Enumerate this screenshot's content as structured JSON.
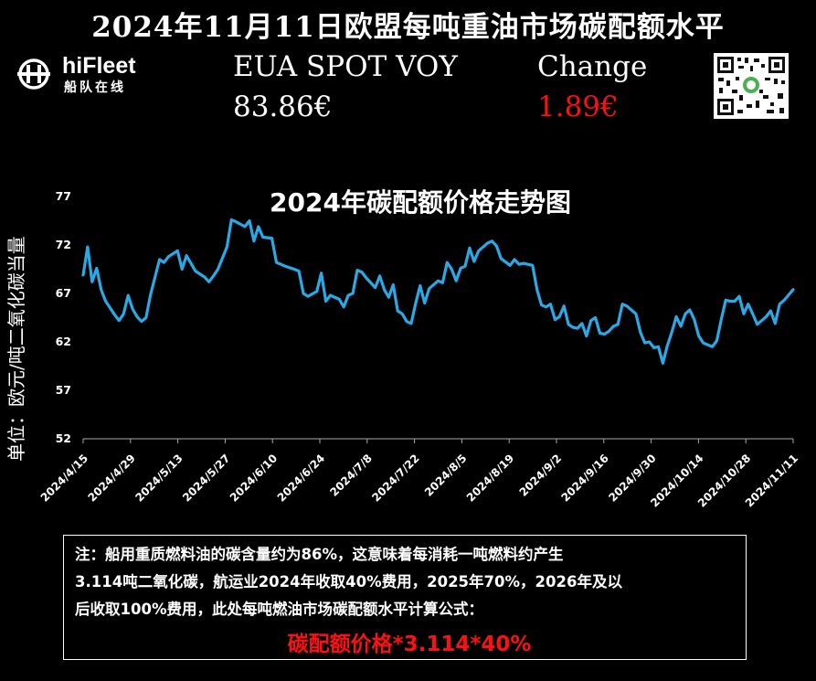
{
  "page_title": "2024年11月11日欧盟每吨重油市场碳配额水平",
  "logo": {
    "name": "hiFleet",
    "sub": "船队在线"
  },
  "kpi": {
    "spot_label": "EUA SPOT VOY",
    "spot_value": "83.86€",
    "change_label": "Change",
    "change_value": "1.89€",
    "change_color": "#ff1010"
  },
  "qr_code": {
    "icon": "qr-code-icon"
  },
  "note": {
    "lines": [
      "注：船用重质燃料油的碳含量约为86%，这意味着每消耗一吨燃料约产生",
      "3.114吨二氧化碳，航运业2024年收取40%费用，2025年70%，2026年及以",
      "后收取100%费用，此处每吨燃油市场碳配额水平计算公式："
    ],
    "formula": "碳配额价格*3.114*40%"
  },
  "chart_data": {
    "type": "line",
    "title": "2024年碳配额价格走势图",
    "ylabel": "单位：欧元/吨二氧化碳当量",
    "xlabel": "",
    "ylim": [
      52,
      77
    ],
    "yticks": [
      52,
      57,
      62,
      67,
      72,
      77
    ],
    "xticks": [
      "2024/4/15",
      "2024/4/29",
      "2024/5/13",
      "2024/5/27",
      "2024/6/10",
      "2024/6/24",
      "2024/7/8",
      "2024/7/22",
      "2024/8/5",
      "2024/8/19",
      "2024/9/2",
      "2024/9/16",
      "2024/9/30",
      "2024/10/14",
      "2024/10/28",
      "2024/11/11"
    ],
    "line_color": "#29a9e6",
    "grid": false,
    "series": [
      {
        "values": [
          [
            0,
            68.9
          ],
          [
            1,
            71.8
          ],
          [
            2,
            68.2
          ],
          [
            3,
            69.6
          ],
          [
            4,
            67.4
          ],
          [
            5,
            66.2
          ],
          [
            7,
            64.8
          ],
          [
            8,
            64.2
          ],
          [
            9,
            64.9
          ],
          [
            10,
            66.8
          ],
          [
            11,
            65.4
          ],
          [
            12,
            64.6
          ],
          [
            13,
            64.1
          ],
          [
            14,
            64.5
          ],
          [
            15,
            66.9
          ],
          [
            17,
            70.5
          ],
          [
            18,
            70.2
          ],
          [
            19,
            70.8
          ],
          [
            21,
            71.4
          ],
          [
            22,
            69.5
          ],
          [
            23,
            70.9
          ],
          [
            24,
            70.1
          ],
          [
            25,
            69.3
          ],
          [
            27,
            68.7
          ],
          [
            28,
            68.2
          ],
          [
            29,
            68.8
          ],
          [
            30,
            69.5
          ],
          [
            32,
            71.8
          ],
          [
            33,
            74.6
          ],
          [
            34,
            74.4
          ],
          [
            36,
            73.9
          ],
          [
            37,
            74.5
          ],
          [
            38,
            72.4
          ],
          [
            39,
            73.9
          ],
          [
            40,
            72.8
          ],
          [
            42,
            72.7
          ],
          [
            43,
            70.2
          ],
          [
            45,
            69.8
          ],
          [
            47,
            69.5
          ],
          [
            48,
            69.3
          ],
          [
            49,
            67.0
          ],
          [
            50,
            66.7
          ],
          [
            52,
            67.2
          ],
          [
            53,
            69.1
          ],
          [
            54,
            66.2
          ],
          [
            55,
            66.8
          ],
          [
            57,
            66.4
          ],
          [
            58,
            65.6
          ],
          [
            59,
            66.8
          ],
          [
            60,
            67.0
          ],
          [
            61,
            69.4
          ],
          [
            62,
            69.2
          ],
          [
            63,
            68.6
          ],
          [
            65,
            67.6
          ],
          [
            66,
            68.8
          ],
          [
            67,
            67.4
          ],
          [
            68,
            66.6
          ],
          [
            69,
            67.9
          ],
          [
            70,
            65.2
          ],
          [
            71,
            64.9
          ],
          [
            72,
            64.1
          ],
          [
            73,
            63.9
          ],
          [
            74,
            66.0
          ],
          [
            75,
            67.8
          ],
          [
            76,
            66.0
          ],
          [
            77,
            67.5
          ],
          [
            79,
            68.3
          ],
          [
            80,
            68.1
          ],
          [
            81,
            70.2
          ],
          [
            82,
            69.5
          ],
          [
            83,
            68.3
          ],
          [
            84,
            69.6
          ],
          [
            85,
            69.8
          ],
          [
            86,
            71.7
          ],
          [
            87,
            70.3
          ],
          [
            88,
            71.4
          ],
          [
            90,
            72.2
          ],
          [
            91,
            72.4
          ],
          [
            92,
            71.9
          ],
          [
            93,
            70.6
          ],
          [
            95,
            69.9
          ],
          [
            96,
            70.5
          ],
          [
            97,
            70.0
          ],
          [
            98,
            70.1
          ],
          [
            100,
            69.9
          ],
          [
            101,
            67.4
          ],
          [
            102,
            65.8
          ],
          [
            103,
            65.6
          ],
          [
            104,
            65.9
          ],
          [
            105,
            64.3
          ],
          [
            106,
            64.6
          ],
          [
            107,
            65.7
          ],
          [
            108,
            63.8
          ],
          [
            109,
            63.5
          ],
          [
            110,
            63.4
          ],
          [
            111,
            63.9
          ],
          [
            112,
            62.6
          ],
          [
            113,
            64.2
          ],
          [
            114,
            64.5
          ],
          [
            115,
            62.9
          ],
          [
            116,
            62.8
          ],
          [
            117,
            63.1
          ],
          [
            118,
            63.6
          ],
          [
            119,
            63.8
          ],
          [
            120,
            65.9
          ],
          [
            121,
            65.7
          ],
          [
            123,
            64.9
          ],
          [
            124,
            63.0
          ],
          [
            125,
            61.9
          ],
          [
            126,
            62.0
          ],
          [
            127,
            61.4
          ],
          [
            128,
            61.5
          ],
          [
            129,
            59.8
          ],
          [
            130,
            61.6
          ],
          [
            131,
            63.0
          ],
          [
            132,
            64.6
          ],
          [
            133,
            63.6
          ],
          [
            134,
            64.9
          ],
          [
            135,
            65.3
          ],
          [
            136,
            64.3
          ],
          [
            137,
            62.6
          ],
          [
            138,
            61.9
          ],
          [
            140,
            61.5
          ],
          [
            141,
            62.1
          ],
          [
            142,
            64.3
          ],
          [
            143,
            66.3
          ],
          [
            144,
            66.2
          ],
          [
            145,
            66.2
          ],
          [
            146,
            66.7
          ],
          [
            147,
            64.9
          ],
          [
            148,
            65.9
          ],
          [
            149,
            64.9
          ],
          [
            150,
            63.8
          ],
          [
            151,
            64.2
          ],
          [
            152,
            64.6
          ],
          [
            153,
            65.2
          ],
          [
            154,
            63.9
          ],
          [
            155,
            65.9
          ],
          [
            156,
            66.3
          ],
          [
            158,
            67.4
          ]
        ]
      }
    ]
  }
}
